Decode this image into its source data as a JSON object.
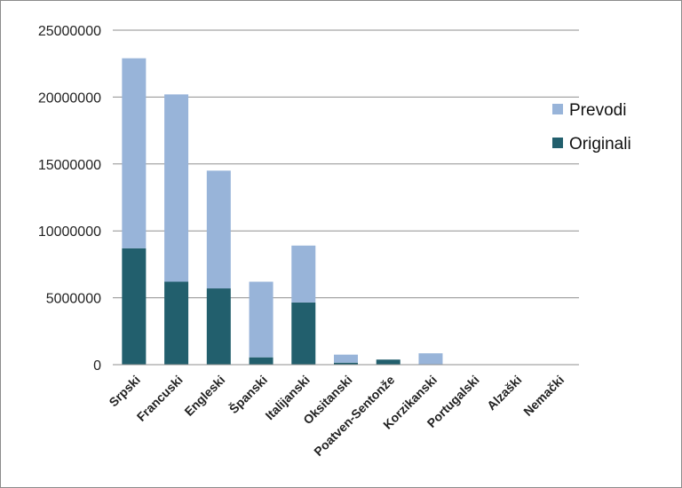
{
  "chart_data": {
    "type": "bar",
    "stacked": true,
    "title": "",
    "xlabel": "",
    "ylabel": "",
    "ylim": [
      0,
      25000000
    ],
    "yticks": [
      0,
      5000000,
      10000000,
      15000000,
      20000000,
      25000000
    ],
    "ytick_labels": [
      "0",
      "5000000",
      "10000000",
      "15000000",
      "20000000",
      "25000000"
    ],
    "grid": true,
    "legend_position": "right",
    "categories": [
      "Srpski",
      "Francuski",
      "Engleski",
      "Španski",
      "Italijanski",
      "Oksitanski",
      "Poatven-Sentonže",
      "Korzikanski",
      "Portugalski",
      "Alzaški",
      "Nemački"
    ],
    "series": [
      {
        "name": "Originali",
        "color": "#225f6d",
        "values": [
          8700000,
          6200000,
          5700000,
          550000,
          4650000,
          150000,
          380000,
          0,
          0,
          0,
          0
        ]
      },
      {
        "name": "Prevodi",
        "color": "#98b4d9",
        "values": [
          14200000,
          14000000,
          8800000,
          5650000,
          4250000,
          600000,
          0,
          850000,
          0,
          0,
          0
        ]
      }
    ],
    "legend_order": [
      "Prevodi",
      "Originali"
    ]
  }
}
